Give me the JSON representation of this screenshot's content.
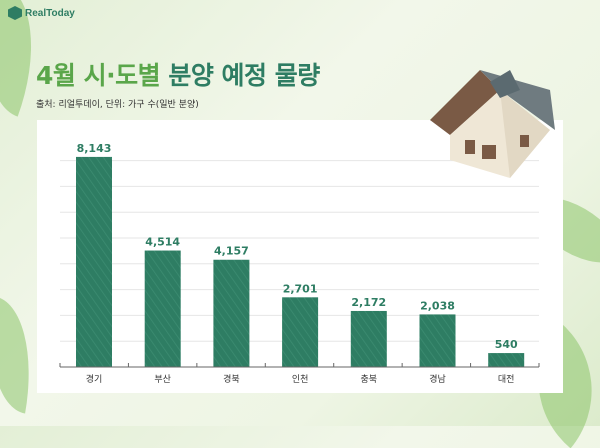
{
  "brand": {
    "logo_text": "RealToday"
  },
  "header": {
    "title_part1": "4월 시·도별",
    "title_part2": "분양 예정 물량",
    "subtitle": "출처: 리얼투데이, 단위: 가구 수(일반 분양)"
  },
  "chart_data": {
    "type": "bar",
    "title": "4월 시·도별 분양 예정 물량",
    "categories": [
      "경기",
      "부산",
      "경북",
      "인천",
      "충북",
      "경남",
      "대전"
    ],
    "values": [
      8143,
      4514,
      4157,
      2701,
      2172,
      2038,
      540
    ],
    "labels": [
      "8,143",
      "4,514",
      "4,157",
      "2,701",
      "2,172",
      "2,038",
      "540"
    ],
    "ylim": [
      0,
      8000
    ],
    "grid": true,
    "bar_color": "#2e7d63",
    "label_color": "#2e7d63"
  }
}
